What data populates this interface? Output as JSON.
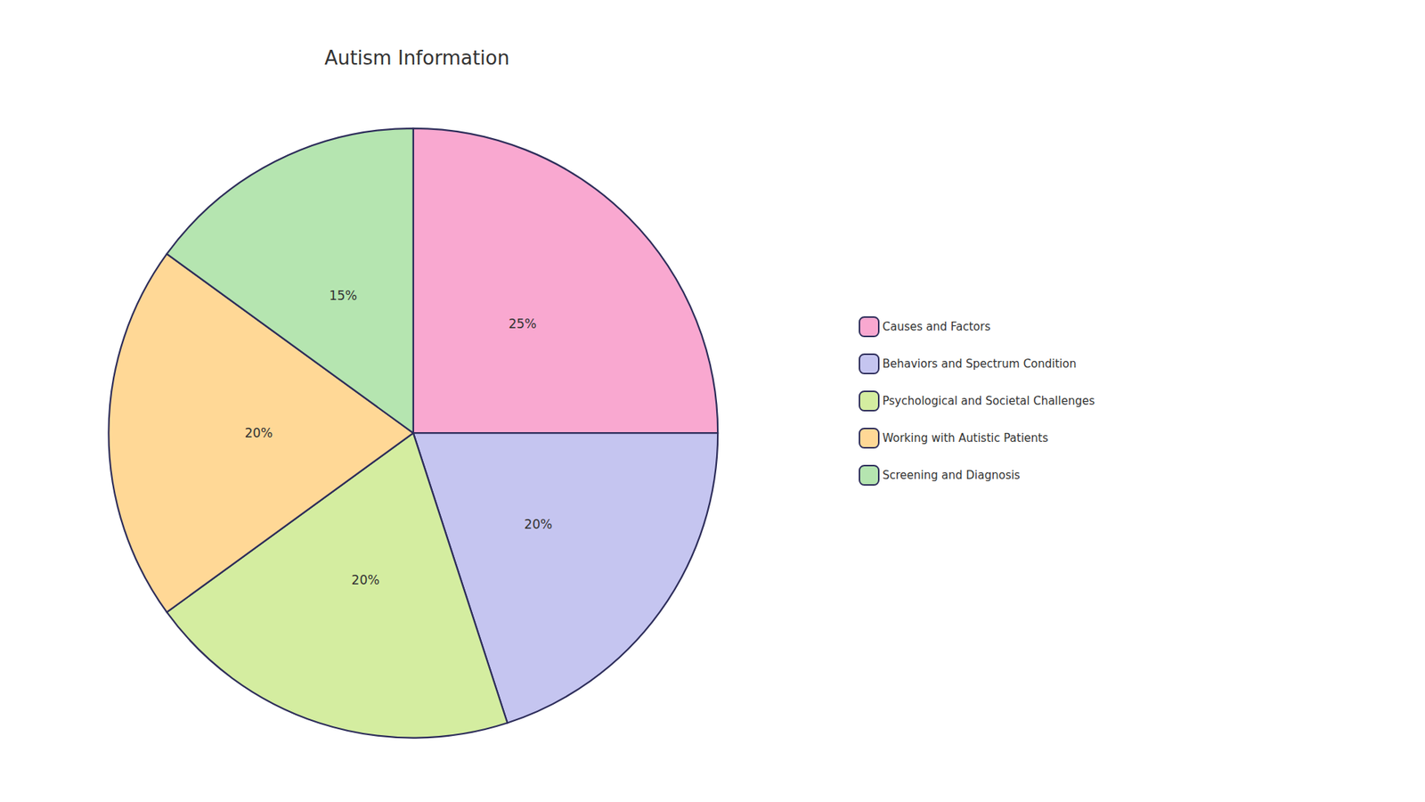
{
  "chart_data": {
    "type": "pie",
    "title": "Autism Information",
    "categories": [
      "Causes and Factors",
      "Behaviors and Spectrum Condition",
      "Psychological and Societal Challenges",
      "Working with Autistic Patients",
      "Screening and Diagnosis"
    ],
    "values": [
      25,
      20,
      20,
      20,
      15
    ],
    "value_labels": [
      "25%",
      "20%",
      "20%",
      "20%",
      "15%"
    ],
    "colors": [
      "#F9A8D0",
      "#C5C5F0",
      "#D4EDA0",
      "#FFD896",
      "#B5E5B0"
    ],
    "data_labels": true,
    "legend": "right"
  }
}
